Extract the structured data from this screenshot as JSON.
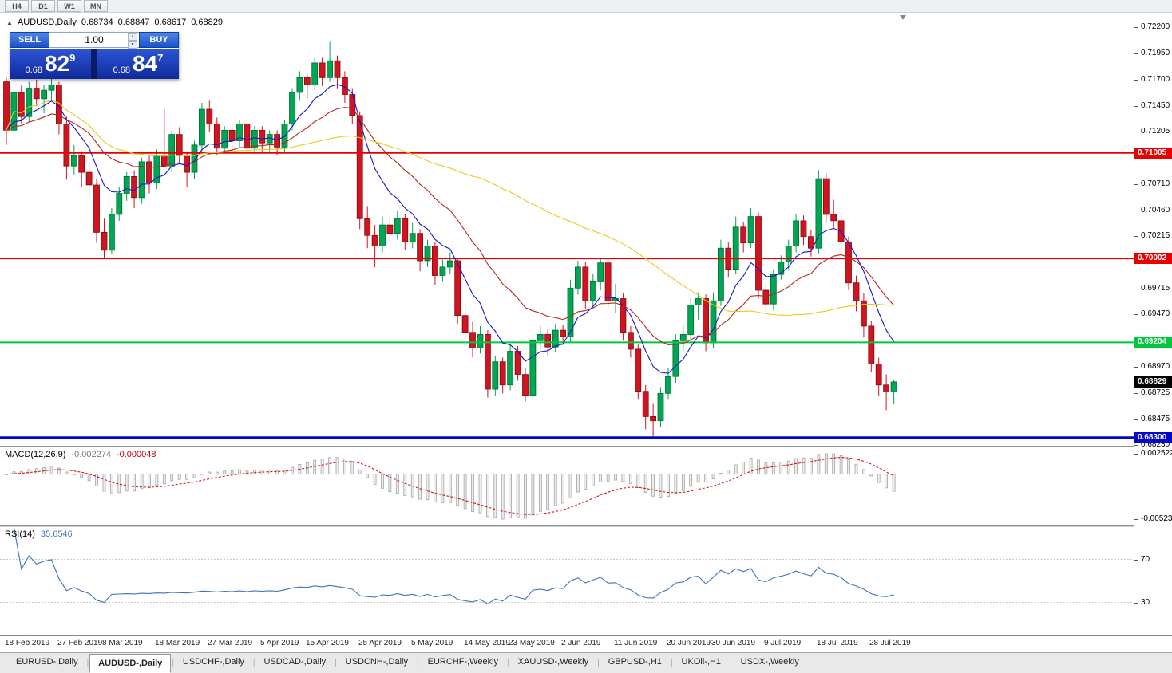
{
  "colors": {
    "bull": "#00a651",
    "bull_dark": "#006b33",
    "bear": "#d01420",
    "bear_dark": "#7d0a12",
    "ma_fast": "#1515c8",
    "ma_mid": "#b4281e",
    "ma_slow": "#f0c81e",
    "macd_hist_fill": "#ededed",
    "macd_hist_stroke": "#9a9a9a",
    "macd_signal": "#d00000",
    "rsi_line": "#3c74b8",
    "level_line": "#c8c8c8"
  },
  "toolbar": {
    "timeframes": [
      "H4",
      "D1",
      "W1",
      "MN"
    ]
  },
  "chart_header": {
    "collapse_icon": "▲",
    "symbol": "AUDUSD,Daily",
    "open": "0.68734",
    "high": "0.68847",
    "low": "0.68617",
    "close": "0.68829"
  },
  "trade_panel": {
    "sell_label": "SELL",
    "buy_label": "BUY",
    "volume": "1.00",
    "sell_price": {
      "prefix": "0.68",
      "big": "82",
      "sup": "9"
    },
    "buy_price": {
      "prefix": "0.68",
      "big": "84",
      "sup": "7"
    }
  },
  "chart_data": {
    "type": "candlestick",
    "symbol": "AUDUSD",
    "timeframe": "Daily",
    "ylim": [
      0.68214,
      0.72336
    ],
    "y_ticks": [
      "0.72200",
      "0.71950",
      "0.71700",
      "0.71450",
      "0.71205",
      "0.70960",
      "0.70710",
      "0.70460",
      "0.70215",
      "0.69965",
      "0.69715",
      "0.69470",
      "0.68970",
      "0.68725",
      "0.68475",
      "0.68230"
    ],
    "h_lines": [
      {
        "price": 0.71005,
        "label": "0.71005",
        "color": "#e80000",
        "width": 2
      },
      {
        "price": 0.70002,
        "label": "0.70002",
        "color": "#e80000",
        "width": 2
      },
      {
        "price": 0.69204,
        "label": "0.69204",
        "color": "#00c83c",
        "width": 2
      },
      {
        "price": 0.683,
        "label": "0.68300",
        "color": "#0008cc",
        "width": 3
      }
    ],
    "current_price": {
      "price": 0.68829,
      "label": "0.68829",
      "bg": "#000000"
    },
    "moving_averages": [
      {
        "period": 8,
        "method": "ema",
        "color": "#1515c8"
      },
      {
        "period": 20,
        "method": "ema",
        "color": "#b4281e"
      },
      {
        "period": 50,
        "method": "sma",
        "color": "#f0c81e"
      }
    ],
    "candles": [
      [
        0.7168,
        0.7172,
        0.7108,
        0.7122
      ],
      [
        0.7122,
        0.7162,
        0.7118,
        0.7158
      ],
      [
        0.7158,
        0.7165,
        0.7128,
        0.7135
      ],
      [
        0.7135,
        0.7168,
        0.713,
        0.7162
      ],
      [
        0.7162,
        0.717,
        0.7145,
        0.7152
      ],
      [
        0.7152,
        0.7165,
        0.7138,
        0.716
      ],
      [
        0.716,
        0.7172,
        0.715,
        0.7165
      ],
      [
        0.7165,
        0.7168,
        0.7118,
        0.7128
      ],
      [
        0.7128,
        0.7135,
        0.7075,
        0.7088
      ],
      [
        0.7088,
        0.7108,
        0.708,
        0.7098
      ],
      [
        0.7098,
        0.7102,
        0.7068,
        0.7082
      ],
      [
        0.7082,
        0.7092,
        0.7058,
        0.707
      ],
      [
        0.707,
        0.7076,
        0.7015,
        0.7025
      ],
      [
        0.7025,
        0.7038,
        0.7,
        0.7008
      ],
      [
        0.7008,
        0.7048,
        0.7004,
        0.7042
      ],
      [
        0.7042,
        0.7068,
        0.7036,
        0.7062
      ],
      [
        0.7062,
        0.7082,
        0.7055,
        0.7078
      ],
      [
        0.7078,
        0.7084,
        0.7048,
        0.7058
      ],
      [
        0.7058,
        0.7096,
        0.7052,
        0.7092
      ],
      [
        0.7092,
        0.7098,
        0.7062,
        0.7072
      ],
      [
        0.7072,
        0.7104,
        0.7066,
        0.7098
      ],
      [
        0.7098,
        0.7142,
        0.7092,
        0.7088
      ],
      [
        0.7088,
        0.7122,
        0.7082,
        0.7118
      ],
      [
        0.7118,
        0.7125,
        0.709,
        0.7098
      ],
      [
        0.7098,
        0.7102,
        0.7068,
        0.7082
      ],
      [
        0.7082,
        0.7112,
        0.7076,
        0.7108
      ],
      [
        0.7108,
        0.7148,
        0.7102,
        0.7142
      ],
      [
        0.7142,
        0.715,
        0.712,
        0.7128
      ],
      [
        0.7128,
        0.7134,
        0.7098,
        0.7105
      ],
      [
        0.7105,
        0.7126,
        0.71,
        0.7122
      ],
      [
        0.7122,
        0.7128,
        0.7102,
        0.7112
      ],
      [
        0.7112,
        0.7132,
        0.7106,
        0.7128
      ],
      [
        0.7128,
        0.7133,
        0.7098,
        0.7105
      ],
      [
        0.7105,
        0.7126,
        0.71,
        0.7122
      ],
      [
        0.7122,
        0.7126,
        0.7102,
        0.711
      ],
      [
        0.711,
        0.7122,
        0.7102,
        0.7118
      ],
      [
        0.7118,
        0.7122,
        0.7098,
        0.7106
      ],
      [
        0.7106,
        0.7132,
        0.71,
        0.7128
      ],
      [
        0.7128,
        0.7162,
        0.7122,
        0.7158
      ],
      [
        0.7158,
        0.7178,
        0.715,
        0.7172
      ],
      [
        0.7172,
        0.7176,
        0.7152,
        0.7165
      ],
      [
        0.7165,
        0.7192,
        0.716,
        0.7186
      ],
      [
        0.7186,
        0.7191,
        0.7164,
        0.7172
      ],
      [
        0.7172,
        0.7206,
        0.7168,
        0.7188
      ],
      [
        0.7188,
        0.7193,
        0.7162,
        0.7172
      ],
      [
        0.7172,
        0.7178,
        0.7148,
        0.7156
      ],
      [
        0.7156,
        0.7162,
        0.7128,
        0.7136
      ],
      [
        0.7136,
        0.714,
        0.7028,
        0.7038
      ],
      [
        0.7038,
        0.705,
        0.701,
        0.7022
      ],
      [
        0.7022,
        0.7032,
        0.6992,
        0.7012
      ],
      [
        0.7012,
        0.704,
        0.7006,
        0.7032
      ],
      [
        0.7032,
        0.7041,
        0.7016,
        0.7024
      ],
      [
        0.7024,
        0.7046,
        0.7018,
        0.7038
      ],
      [
        0.7038,
        0.7042,
        0.7008,
        0.7016
      ],
      [
        0.7016,
        0.7034,
        0.701,
        0.7024
      ],
      [
        0.7024,
        0.7028,
        0.6988,
        0.6998
      ],
      [
        0.6998,
        0.7018,
        0.6992,
        0.7012
      ],
      [
        0.7012,
        0.7016,
        0.6975,
        0.6984
      ],
      [
        0.6984,
        0.6999,
        0.6978,
        0.6992
      ],
      [
        0.6992,
        0.7006,
        0.6985,
        0.6998
      ],
      [
        0.6998,
        0.7001,
        0.6938,
        0.6946
      ],
      [
        0.6946,
        0.6956,
        0.6922,
        0.693
      ],
      [
        0.693,
        0.694,
        0.6906,
        0.6915
      ],
      [
        0.6915,
        0.6936,
        0.691,
        0.6928
      ],
      [
        0.6928,
        0.6932,
        0.6868,
        0.6876
      ],
      [
        0.6876,
        0.6908,
        0.687,
        0.6902
      ],
      [
        0.6902,
        0.6906,
        0.6872,
        0.688
      ],
      [
        0.688,
        0.6918,
        0.6875,
        0.6912
      ],
      [
        0.6912,
        0.6917,
        0.6884,
        0.689
      ],
      [
        0.689,
        0.6896,
        0.6864,
        0.687
      ],
      [
        0.687,
        0.6928,
        0.6866,
        0.6922
      ],
      [
        0.6922,
        0.6936,
        0.6914,
        0.6928
      ],
      [
        0.6928,
        0.6933,
        0.6908,
        0.6916
      ],
      [
        0.6916,
        0.6938,
        0.6911,
        0.6932
      ],
      [
        0.6932,
        0.6937,
        0.6918,
        0.6926
      ],
      [
        0.6926,
        0.698,
        0.692,
        0.6972
      ],
      [
        0.6972,
        0.6998,
        0.6966,
        0.6992
      ],
      [
        0.6992,
        0.6997,
        0.6952,
        0.696
      ],
      [
        0.696,
        0.6986,
        0.6954,
        0.6978
      ],
      [
        0.6978,
        0.70005,
        0.697,
        0.6996
      ],
      [
        0.6996,
        0.7,
        0.6952,
        0.696
      ],
      [
        0.696,
        0.6976,
        0.6948,
        0.6962
      ],
      [
        0.6962,
        0.6967,
        0.6922,
        0.693
      ],
      [
        0.693,
        0.6936,
        0.6906,
        0.6914
      ],
      [
        0.6914,
        0.6919,
        0.6866,
        0.6874
      ],
      [
        0.6874,
        0.688,
        0.6838,
        0.685
      ],
      [
        0.685,
        0.6862,
        0.6831,
        0.6846
      ],
      [
        0.6846,
        0.6878,
        0.684,
        0.6872
      ],
      [
        0.6872,
        0.6896,
        0.6866,
        0.6888
      ],
      [
        0.6888,
        0.6928,
        0.6882,
        0.6922
      ],
      [
        0.6922,
        0.6936,
        0.6912,
        0.6928
      ],
      [
        0.6928,
        0.6962,
        0.6921,
        0.6956
      ],
      [
        0.6956,
        0.6968,
        0.6942,
        0.6962
      ],
      [
        0.6962,
        0.6966,
        0.6912,
        0.692
      ],
      [
        0.692,
        0.6968,
        0.6915,
        0.696
      ],
      [
        0.696,
        0.7018,
        0.6955,
        0.701
      ],
      [
        0.701,
        0.7016,
        0.6982,
        0.699
      ],
      [
        0.699,
        0.704,
        0.6985,
        0.703
      ],
      [
        0.703,
        0.7035,
        0.7006,
        0.7015
      ],
      [
        0.7015,
        0.7048,
        0.701,
        0.704
      ],
      [
        0.704,
        0.7044,
        0.6962,
        0.697
      ],
      [
        0.697,
        0.6977,
        0.695,
        0.6957
      ],
      [
        0.6957,
        0.699,
        0.6951,
        0.6985
      ],
      [
        0.6985,
        0.7003,
        0.698,
        0.6997
      ],
      [
        0.6997,
        0.7018,
        0.699,
        0.7012
      ],
      [
        0.7012,
        0.7042,
        0.7006,
        0.7036
      ],
      [
        0.7036,
        0.7041,
        0.7013,
        0.7021
      ],
      [
        0.7021,
        0.7027,
        0.7002,
        0.701
      ],
      [
        0.701,
        0.7084,
        0.7005,
        0.7076
      ],
      [
        0.7076,
        0.7081,
        0.7034,
        0.7042
      ],
      [
        0.7042,
        0.7056,
        0.7028,
        0.7036
      ],
      [
        0.7036,
        0.7043,
        0.7008,
        0.7016
      ],
      [
        0.7016,
        0.7021,
        0.697,
        0.6977
      ],
      [
        0.6977,
        0.6984,
        0.695,
        0.696
      ],
      [
        0.696,
        0.6967,
        0.6925,
        0.6936
      ],
      [
        0.6936,
        0.6941,
        0.6892,
        0.69
      ],
      [
        0.69,
        0.6906,
        0.687,
        0.688
      ],
      [
        0.688,
        0.689,
        0.6856,
        0.68734
      ],
      [
        0.68734,
        0.68847,
        0.68617,
        0.68829
      ]
    ],
    "x_labels": [
      "18 Feb 2019",
      "27 Feb 2019",
      "8 Mar 2019",
      "18 Mar 2019",
      "27 Mar 2019",
      "5 Apr 2019",
      "15 Apr 2019",
      "25 Apr 2019",
      "5 May 2019",
      "14 May 2019",
      "23 May 2019",
      "2 Jun 2019",
      "11 Jun 2019",
      "20 Jun 2019",
      "30 Jun 2019",
      "9 Jul 2019",
      "18 Jul 2019",
      "28 Jul 2019"
    ],
    "macd": {
      "label": "MACD(12,26,9)",
      "value_main": "-0.002274",
      "value_signal": "-0.000048",
      "fast": 12,
      "slow": 26,
      "signal": 9,
      "scale_top": "0.002522",
      "scale_bottom": "-0.005234"
    },
    "rsi": {
      "label": "RSI(14)",
      "value": "35.6546",
      "period": 14,
      "levels": [
        70,
        30
      ]
    }
  },
  "tabs": [
    {
      "label": "EURUSD-,Daily",
      "active": false
    },
    {
      "label": "AUDUSD-,Daily",
      "active": true
    },
    {
      "label": "USDCHF-,Daily",
      "active": false
    },
    {
      "label": "USDCAD-,Daily",
      "active": false
    },
    {
      "label": "USDCNH-,Daily",
      "active": false
    },
    {
      "label": "EURCHF-,Weekly",
      "active": false
    },
    {
      "label": "XAUUSD-,Weekly",
      "active": false
    },
    {
      "label": "GBPUSD-,H1",
      "active": false
    },
    {
      "label": "UKOil-,H1",
      "active": false
    },
    {
      "label": "USDX-,Weekly",
      "active": false
    }
  ]
}
